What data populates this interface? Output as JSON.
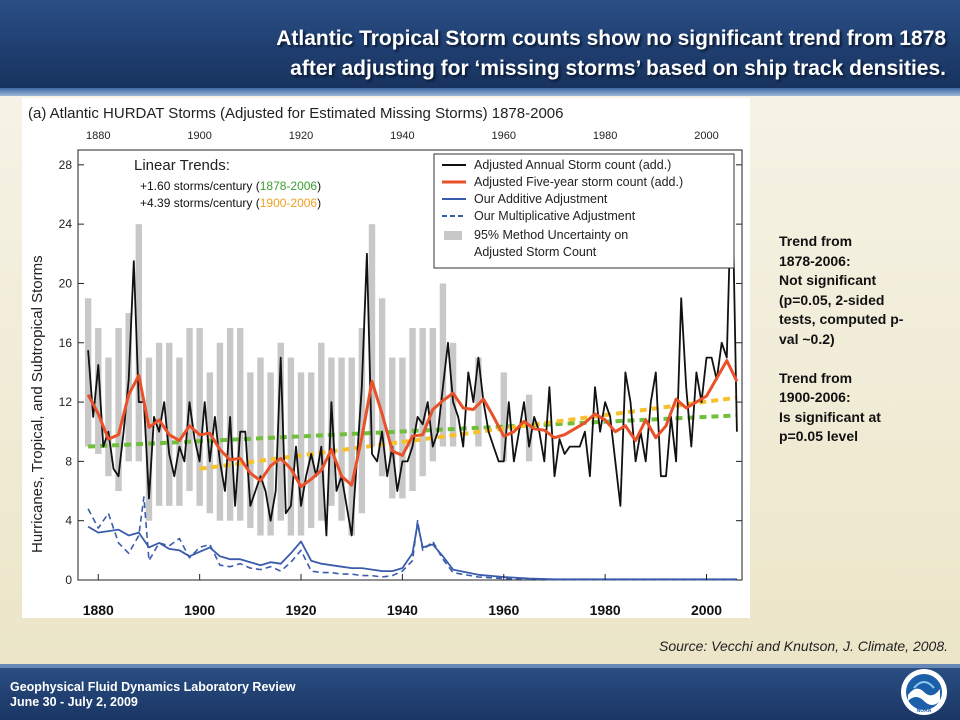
{
  "slide": {
    "title_line1": "Atlantic Tropical Storm counts show no significant trend from 1878",
    "title_line2": "after adjusting for ‘missing storms’ based on ship track densities.",
    "side_note": {
      "p1": [
        "Trend from",
        "1878-2006:",
        "Not significant",
        "(p=0.05, 2-sided",
        "tests, computed p-",
        "val ~0.2)"
      ],
      "p2": [
        "Trend from",
        "1900-2006:",
        "Is significant at",
        "p=0.05 level"
      ]
    },
    "source": "Source:  Vecchi and Knutson, J. Climate, 2008.",
    "footer_line1": "Geophysical Fluid Dynamics Laboratory Review",
    "footer_line2": "June 30 - July 2, 2009",
    "logo_text": "NOAA"
  },
  "chart_data": {
    "type": "line",
    "title": "(a) Atlantic HURDAT Storms (Adjusted for Estimated Missing Storms) 1878-2006",
    "ylabel": "Hurricanes, Tropical, and Subtropical Storms",
    "xlabel": "",
    "xlim": [
      1876,
      2007
    ],
    "ylim": [
      0,
      29
    ],
    "x_ticks": [
      1880,
      1900,
      1920,
      1940,
      1960,
      1980,
      2000
    ],
    "x_tick_labels": [
      "1880",
      "1900",
      "1920",
      "1940",
      "1960",
      "1980",
      "2000"
    ],
    "y_ticks": [
      0,
      4,
      8,
      12,
      16,
      20,
      24,
      28
    ],
    "y_tick_labels": [
      "0",
      "4",
      "8",
      "12",
      "16",
      "20",
      "24",
      "28"
    ],
    "colors": {
      "annual": "#111111",
      "five_year": "#e8512a",
      "additive": "#3b5cad",
      "uncertainty": "#c8c8c8",
      "trend_1878": "#6fbf3a",
      "trend_1900": "#f6c12a",
      "trend_text_green": "#3aa030",
      "trend_text_orange": "#f0a020"
    },
    "linear_trends": {
      "heading": "Linear Trends:",
      "line1_prefix": "+1.60 storms/century (",
      "line1_period": "1878-2006",
      "line1_suffix": ")",
      "line2_prefix": "+4.39 storms/century (",
      "line2_period": "1900-2006",
      "line2_suffix": ")"
    },
    "legend": {
      "position": "top-right",
      "entries": [
        "Adjusted Annual Storm count (add.)",
        "Adjusted Five-year storm count (add.)",
        "Our Additive Adjustment",
        "Our Multiplicative Adjustment",
        "95% Method Uncertainty on",
        "Adjusted Storm Count"
      ]
    },
    "series": [
      {
        "name": "Adjusted Annual Storm count (add.)",
        "x": [
          1878,
          1879,
          1880,
          1881,
          1882,
          1883,
          1884,
          1885,
          1886,
          1887,
          1888,
          1889,
          1890,
          1891,
          1892,
          1893,
          1894,
          1895,
          1896,
          1897,
          1898,
          1899,
          1900,
          1901,
          1902,
          1903,
          1904,
          1905,
          1906,
          1907,
          1908,
          1909,
          1910,
          1911,
          1912,
          1913,
          1914,
          1915,
          1916,
          1917,
          1918,
          1919,
          1920,
          1921,
          1922,
          1923,
          1924,
          1925,
          1926,
          1927,
          1928,
          1929,
          1930,
          1931,
          1932,
          1933,
          1934,
          1935,
          1936,
          1937,
          1938,
          1939,
          1940,
          1941,
          1942,
          1943,
          1944,
          1945,
          1946,
          1947,
          1948,
          1949,
          1950,
          1951,
          1952,
          1953,
          1954,
          1955,
          1956,
          1957,
          1958,
          1959,
          1960,
          1961,
          1962,
          1963,
          1964,
          1965,
          1966,
          1967,
          1968,
          1969,
          1970,
          1971,
          1972,
          1973,
          1974,
          1975,
          1976,
          1977,
          1978,
          1979,
          1980,
          1981,
          1982,
          1983,
          1984,
          1985,
          1986,
          1987,
          1988,
          1989,
          1990,
          1991,
          1992,
          1993,
          1994,
          1995,
          1996,
          1997,
          1998,
          1999,
          2000,
          2001,
          2002,
          2003,
          2004,
          2005,
          2006
        ],
        "values": [
          15.5,
          11,
          14.5,
          9,
          10,
          7.5,
          7,
          10,
          13.5,
          21.5,
          12,
          12,
          5.5,
          11,
          10,
          12,
          8.5,
          7,
          9,
          8,
          12,
          9.5,
          8,
          12,
          8,
          11,
          8,
          6,
          11,
          5,
          10,
          10,
          5,
          6,
          7,
          6,
          4,
          6,
          15,
          4.5,
          5,
          9,
          5,
          7,
          8.5,
          7,
          9,
          3,
          12,
          6,
          7,
          5,
          3,
          8,
          13,
          22,
          8.5,
          8,
          10,
          7,
          9,
          6,
          8,
          8,
          9,
          11,
          10.5,
          12,
          9,
          10,
          13,
          16,
          12,
          11,
          9,
          14,
          12,
          15,
          12,
          10,
          9,
          8,
          8,
          12,
          8,
          10,
          12,
          9,
          11,
          10,
          8,
          13,
          7,
          9.5,
          8.5,
          9,
          9,
          9,
          10,
          7,
          13,
          10,
          12,
          11,
          8,
          5,
          14,
          12,
          8,
          10,
          8,
          12,
          14,
          7,
          7,
          11,
          8,
          19,
          13,
          9,
          14,
          12,
          15,
          15,
          13.5,
          16,
          15,
          28,
          10
        ]
      },
      {
        "name": "Adjusted Five-year storm count (add.)",
        "x": [
          1878,
          1880,
          1882,
          1884,
          1886,
          1888,
          1890,
          1892,
          1894,
          1896,
          1898,
          1900,
          1902,
          1904,
          1906,
          1908,
          1910,
          1912,
          1914,
          1916,
          1918,
          1920,
          1922,
          1924,
          1926,
          1928,
          1930,
          1932,
          1934,
          1936,
          1938,
          1940,
          1942,
          1944,
          1946,
          1948,
          1950,
          1952,
          1954,
          1956,
          1958,
          1960,
          1962,
          1964,
          1966,
          1968,
          1970,
          1972,
          1974,
          1976,
          1978,
          1980,
          1982,
          1984,
          1986,
          1988,
          1990,
          1992,
          1994,
          1996,
          1998,
          2000,
          2002,
          2004,
          2006
        ],
        "values": [
          12.5,
          11.2,
          9.5,
          9.8,
          12.5,
          13.8,
          10.3,
          10.8,
          9.8,
          9.4,
          10.4,
          9.8,
          9.9,
          8.8,
          8.1,
          8.2,
          7.2,
          6.7,
          7.7,
          8.2,
          7.5,
          6.3,
          6.8,
          7.4,
          8.8,
          7.0,
          6.4,
          9.6,
          13.4,
          11.2,
          8.7,
          8.4,
          9.7,
          9.8,
          11.5,
          12.1,
          12.6,
          11.6,
          11.5,
          12.2,
          11.0,
          9.7,
          10.0,
          10.7,
          10.2,
          10.1,
          9.6,
          9.8,
          10.2,
          10.6,
          11.2,
          10.8,
          10.0,
          10.4,
          9.4,
          10.8,
          9.6,
          10.4,
          12.2,
          11.6,
          12.0,
          12.4,
          13.6,
          14.8,
          13.4
        ]
      },
      {
        "name": "Our Additive Adjustment",
        "x": [
          1878,
          1880,
          1882,
          1884,
          1886,
          1888,
          1890,
          1892,
          1894,
          1896,
          1898,
          1900,
          1902,
          1904,
          1906,
          1908,
          1910,
          1912,
          1914,
          1916,
          1918,
          1920,
          1922,
          1924,
          1926,
          1928,
          1930,
          1932,
          1934,
          1936,
          1938,
          1940,
          1942,
          1943,
          1944,
          1946,
          1948,
          1950,
          1955,
          1960,
          1965,
          1970,
          2006
        ],
        "values": [
          3.6,
          3.2,
          3.3,
          3.4,
          3.0,
          3.2,
          2.2,
          2.5,
          2.1,
          2.0,
          1.6,
          1.9,
          2.2,
          1.6,
          1.4,
          1.4,
          1.2,
          1.0,
          1.2,
          1.1,
          1.8,
          2.6,
          1.3,
          1.1,
          1.0,
          0.9,
          0.8,
          0.8,
          0.7,
          0.6,
          0.6,
          0.8,
          1.8,
          3.8,
          2.2,
          2.4,
          1.6,
          0.7,
          0.35,
          0.2,
          0.1,
          0.05,
          0.05
        ]
      },
      {
        "name": "Our Multiplicative Adjustment",
        "x": [
          1878,
          1880,
          1882,
          1884,
          1886,
          1888,
          1889,
          1890,
          1892,
          1894,
          1896,
          1898,
          1900,
          1902,
          1904,
          1906,
          1908,
          1910,
          1912,
          1914,
          1916,
          1918,
          1920,
          1922,
          1924,
          1926,
          1928,
          1930,
          1932,
          1934,
          1936,
          1938,
          1940,
          1942,
          1943,
          1944,
          1946,
          1948,
          1950,
          1955,
          1960,
          1965,
          1970,
          2006
        ],
        "values": [
          4.8,
          3.5,
          4.5,
          2.5,
          1.8,
          3.0,
          5.6,
          1.3,
          2.5,
          2.3,
          2.8,
          1.5,
          2.2,
          2.4,
          1.0,
          0.9,
          1.1,
          0.8,
          0.7,
          0.9,
          0.6,
          1.2,
          2.0,
          0.6,
          0.5,
          0.5,
          0.4,
          0.4,
          0.3,
          0.3,
          0.2,
          0.3,
          0.6,
          1.3,
          4.0,
          2.0,
          2.6,
          1.4,
          0.5,
          0.2,
          0.1,
          0.05,
          0.02,
          0.02
        ]
      }
    ],
    "uncertainty_band": {
      "x": [
        1878,
        1880,
        1882,
        1884,
        1886,
        1888,
        1890,
        1892,
        1894,
        1896,
        1898,
        1900,
        1902,
        1904,
        1906,
        1908,
        1910,
        1912,
        1914,
        1916,
        1918,
        1920,
        1922,
        1924,
        1926,
        1928,
        1930,
        1932,
        1934,
        1936,
        1938,
        1940,
        1942,
        1944,
        1946,
        1948,
        1950,
        1955,
        1960,
        1965
      ],
      "low": [
        9,
        8.5,
        7,
        6,
        8,
        8,
        4,
        5,
        5,
        5,
        6,
        5,
        4.5,
        4,
        4,
        4,
        3.5,
        3,
        3,
        4,
        3,
        3,
        3.5,
        4,
        5,
        4,
        3,
        4.5,
        9,
        7,
        5.5,
        5.5,
        6,
        7,
        8,
        9,
        9,
        9,
        8,
        8
      ],
      "high": [
        19,
        17,
        15,
        17,
        18,
        24,
        15,
        16,
        16,
        15,
        17,
        17,
        14,
        16,
        17,
        17,
        14,
        15,
        14,
        16,
        15,
        14,
        14,
        16,
        15,
        15,
        15,
        17,
        24,
        19,
        15,
        15,
        17,
        17,
        17,
        20,
        16,
        15,
        14,
        12.5
      ]
    },
    "trend_lines": [
      {
        "name": "1878-2006",
        "x": [
          1878,
          2006
        ],
        "y": [
          9.0,
          11.1
        ]
      },
      {
        "name": "1900-2006",
        "x": [
          1900,
          2006
        ],
        "y": [
          7.5,
          12.3
        ]
      }
    ]
  }
}
